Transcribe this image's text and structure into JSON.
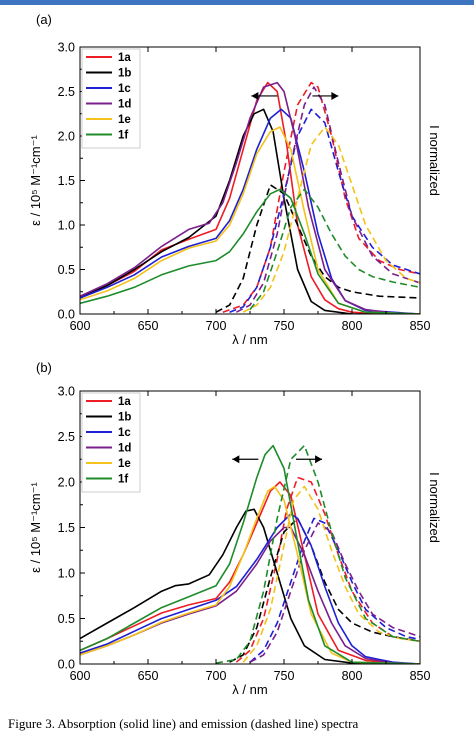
{
  "caption": "Figure 3. Absorption (solid line) and emission (dashed line) spectra",
  "chart_data": [
    {
      "type": "line",
      "panel_label": "(a)",
      "xlabel": "λ / nm",
      "ylabel": "ε / 10⁵ M⁻¹cm⁻¹",
      "y2label": "I normalized",
      "xlim": [
        600,
        850
      ],
      "ylim": [
        0,
        3.0
      ],
      "xticks": [
        "600",
        "650",
        "700",
        "750",
        "800",
        "850"
      ],
      "yticks": [
        "0.0",
        "0.5",
        "1.0",
        "1.5",
        "2.0",
        "2.5",
        "3.0"
      ],
      "legend_position": "top-left",
      "series": [
        {
          "name": "1a",
          "color": "#ee1c25",
          "absorption": {
            "x": [
              600,
              620,
              640,
              660,
              680,
              700,
              710,
              720,
              730,
              738,
              745,
              752,
              760,
              770,
              780,
              790,
              800,
              820,
              850
            ],
            "y": [
              0.2,
              0.32,
              0.48,
              0.72,
              0.84,
              0.95,
              1.3,
              1.85,
              2.4,
              2.6,
              2.5,
              1.9,
              1.0,
              0.42,
              0.16,
              0.06,
              0.02,
              0,
              0
            ]
          },
          "emission": {
            "x": [
              705,
              720,
              730,
              740,
              750,
              760,
              770,
              775,
              785,
              795,
              805,
              820,
              835,
              850
            ],
            "y": [
              0.02,
              0.1,
              0.3,
              0.75,
              1.6,
              2.35,
              2.6,
              2.55,
              2.0,
              1.3,
              0.85,
              0.6,
              0.5,
              0.45
            ]
          }
        },
        {
          "name": "1b",
          "color": "#000000",
          "absorption": {
            "x": [
              600,
              620,
              640,
              660,
              680,
              700,
              710,
              720,
              728,
              735,
              742,
              750,
              760,
              770,
              780,
              800,
              850
            ],
            "y": [
              0.18,
              0.32,
              0.5,
              0.7,
              0.86,
              1.1,
              1.5,
              2.0,
              2.25,
              2.3,
              2.05,
              1.3,
              0.5,
              0.14,
              0.04,
              0,
              0
            ]
          },
          "emission": {
            "x": [
              700,
              710,
              720,
              730,
              740,
              750,
              760,
              770,
              780,
              790,
              800,
              820,
              850
            ],
            "y": [
              0.02,
              0.1,
              0.4,
              1.0,
              1.45,
              1.35,
              1.0,
              0.65,
              0.42,
              0.3,
              0.25,
              0.2,
              0.18
            ]
          }
        },
        {
          "name": "1c",
          "color": "#1f1fd4",
          "absorption": {
            "x": [
              600,
              620,
              640,
              660,
              680,
              700,
              710,
              720,
              730,
              740,
              748,
              755,
              765,
              775,
              785,
              795,
              810,
              850
            ],
            "y": [
              0.18,
              0.3,
              0.44,
              0.64,
              0.76,
              0.85,
              1.05,
              1.4,
              1.85,
              2.2,
              2.3,
              2.2,
              1.6,
              0.9,
              0.4,
              0.15,
              0.04,
              0
            ]
          },
          "emission": {
            "x": [
              710,
              720,
              730,
              740,
              750,
              760,
              770,
              780,
              790,
              800,
              815,
              830,
              850
            ],
            "y": [
              0.02,
              0.08,
              0.3,
              0.75,
              1.35,
              2.0,
              2.3,
              2.15,
              1.6,
              1.1,
              0.75,
              0.55,
              0.45
            ]
          }
        },
        {
          "name": "1d",
          "color": "#7b1f8c",
          "absorption": {
            "x": [
              600,
              620,
              640,
              660,
              680,
              695,
              705,
              715,
              725,
              735,
              745,
              750,
              758,
              768,
              780,
              795,
              810,
              830,
              850
            ],
            "y": [
              0.2,
              0.34,
              0.52,
              0.76,
              0.95,
              1.02,
              1.25,
              1.7,
              2.2,
              2.55,
              2.6,
              2.5,
              2.0,
              1.2,
              0.5,
              0.15,
              0.05,
              0.01,
              0
            ]
          },
          "emission": {
            "x": [
              715,
              725,
              735,
              745,
              755,
              765,
              772,
              780,
              790,
              800,
              815,
              830,
              850
            ],
            "y": [
              0.02,
              0.1,
              0.35,
              0.9,
              1.7,
              2.35,
              2.55,
              2.35,
              1.7,
              1.1,
              0.65,
              0.45,
              0.35
            ]
          }
        },
        {
          "name": "1e",
          "color": "#f3c21b",
          "absorption": {
            "x": [
              600,
              620,
              640,
              660,
              680,
              700,
              710,
              720,
              730,
              740,
              747,
              755,
              765,
              775,
              790,
              810,
              850
            ],
            "y": [
              0.16,
              0.26,
              0.4,
              0.6,
              0.74,
              0.82,
              1.0,
              1.35,
              1.8,
              2.05,
              2.1,
              1.85,
              1.15,
              0.5,
              0.12,
              0.02,
              0
            ]
          },
          "emission": {
            "x": [
              720,
              730,
              740,
              750,
              760,
              770,
              780,
              790,
              800,
              810,
              825,
              840,
              850
            ],
            "y": [
              0.02,
              0.1,
              0.3,
              0.7,
              1.3,
              1.9,
              2.1,
              1.9,
              1.45,
              1.0,
              0.6,
              0.4,
              0.35
            ]
          }
        },
        {
          "name": "1f",
          "color": "#1e8c2a",
          "absorption": {
            "x": [
              600,
              620,
              640,
              660,
              680,
              700,
              710,
              720,
              730,
              740,
              747,
              755,
              765,
              775,
              790,
              810,
              850
            ],
            "y": [
              0.12,
              0.2,
              0.3,
              0.44,
              0.54,
              0.6,
              0.7,
              0.9,
              1.15,
              1.35,
              1.4,
              1.3,
              0.9,
              0.45,
              0.12,
              0.02,
              0
            ]
          },
          "emission": {
            "x": [
              725,
              735,
              745,
              755,
              765,
              775,
              785,
              795,
              805,
              815,
              830,
              850
            ],
            "y": [
              0.05,
              0.25,
              0.7,
              1.2,
              1.4,
              1.2,
              0.9,
              0.65,
              0.5,
              0.42,
              0.36,
              0.3
            ]
          }
        }
      ]
    },
    {
      "type": "line",
      "panel_label": "(b)",
      "xlabel": "λ / nm",
      "ylabel": "ε / 10⁵ M⁻¹cm⁻¹",
      "y2label": "I normalized",
      "xlim": [
        600,
        850
      ],
      "ylim": [
        0,
        3.0
      ],
      "xticks": [
        "600",
        "650",
        "700",
        "750",
        "800",
        "850"
      ],
      "yticks": [
        "0.0",
        "0.5",
        "1.0",
        "1.5",
        "2.0",
        "2.5",
        "3.0"
      ],
      "legend_position": "top-left",
      "series": [
        {
          "name": "1a",
          "color": "#ee1c25",
          "absorption": {
            "x": [
              600,
              620,
              640,
              660,
              680,
              700,
              710,
              720,
              730,
              740,
              747,
              755,
              765,
              775,
              790,
              810,
              830,
              850
            ],
            "y": [
              0.15,
              0.28,
              0.42,
              0.56,
              0.65,
              0.72,
              0.9,
              1.2,
              1.55,
              1.9,
              2.0,
              1.85,
              1.2,
              0.55,
              0.15,
              0.04,
              0.01,
              0
            ]
          },
          "emission": {
            "x": [
              715,
              725,
              735,
              745,
              752,
              760,
              770,
              780,
              790,
              800,
              815,
              830,
              850
            ],
            "y": [
              0.02,
              0.15,
              0.5,
              1.15,
              1.7,
              2.05,
              2.0,
              1.65,
              1.2,
              0.8,
              0.45,
              0.3,
              0.25
            ]
          }
        },
        {
          "name": "1b",
          "color": "#000000",
          "absorption": {
            "x": [
              600,
              620,
              640,
              660,
              670,
              680,
              695,
              705,
              715,
              722,
              728,
              735,
              745,
              755,
              765,
              780,
              800,
              850
            ],
            "y": [
              0.28,
              0.45,
              0.62,
              0.8,
              0.86,
              0.88,
              0.98,
              1.2,
              1.5,
              1.68,
              1.7,
              1.5,
              1.0,
              0.5,
              0.2,
              0.05,
              0.01,
              0
            ]
          },
          "emission": {
            "x": [
              710,
              720,
              730,
              740,
              750,
              760,
              770,
              780,
              790,
              800,
              815,
              830,
              850
            ],
            "y": [
              0.02,
              0.1,
              0.4,
              0.95,
              1.45,
              1.6,
              1.3,
              0.9,
              0.6,
              0.45,
              0.35,
              0.3,
              0.25
            ]
          }
        },
        {
          "name": "1c",
          "color": "#1f1fd4",
          "absorption": {
            "x": [
              600,
              620,
              640,
              660,
              680,
              700,
              715,
              730,
              745,
              755,
              760,
              770,
              780,
              790,
              800,
              810,
              830,
              850
            ],
            "y": [
              0.12,
              0.22,
              0.36,
              0.5,
              0.6,
              0.7,
              0.85,
              1.15,
              1.5,
              1.65,
              1.6,
              1.3,
              0.85,
              0.45,
              0.2,
              0.08,
              0.02,
              0
            ]
          },
          "emission": {
            "x": [
              725,
              735,
              745,
              755,
              765,
              772,
              780,
              790,
              800,
              810,
              825,
              840,
              850
            ],
            "y": [
              0.02,
              0.15,
              0.45,
              0.9,
              1.35,
              1.6,
              1.55,
              1.25,
              0.9,
              0.6,
              0.4,
              0.3,
              0.27
            ]
          }
        },
        {
          "name": "1d",
          "color": "#7b1f8c",
          "absorption": {
            "x": [
              600,
              620,
              640,
              660,
              680,
              700,
              715,
              730,
              740,
              750,
              755,
              765,
              775,
              785,
              795,
              810,
              830,
              850
            ],
            "y": [
              0.1,
              0.2,
              0.32,
              0.45,
              0.55,
              0.64,
              0.8,
              1.1,
              1.35,
              1.5,
              1.5,
              1.2,
              0.8,
              0.45,
              0.2,
              0.06,
              0.01,
              0
            ]
          },
          "emission": {
            "x": [
              725,
              735,
              745,
              755,
              765,
              775,
              785,
              795,
              805,
              815,
              830,
              850
            ],
            "y": [
              0.02,
              0.1,
              0.35,
              0.8,
              1.25,
              1.55,
              1.45,
              1.1,
              0.8,
              0.55,
              0.4,
              0.3
            ]
          }
        },
        {
          "name": "1e",
          "color": "#f3c21b",
          "absorption": {
            "x": [
              600,
              620,
              640,
              660,
              680,
              700,
              710,
              720,
              730,
              738,
              743,
              750,
              760,
              770,
              785,
              800,
              850
            ],
            "y": [
              0.1,
              0.2,
              0.32,
              0.46,
              0.56,
              0.65,
              0.85,
              1.2,
              1.6,
              1.9,
              1.95,
              1.8,
              1.2,
              0.55,
              0.12,
              0.02,
              0
            ]
          },
          "emission": {
            "x": [
              720,
              730,
              740,
              750,
              757,
              765,
              775,
              785,
              795,
              805,
              820,
              835,
              850
            ],
            "y": [
              0.02,
              0.2,
              0.6,
              1.3,
              1.8,
              1.95,
              1.7,
              1.25,
              0.85,
              0.55,
              0.35,
              0.28,
              0.25
            ]
          }
        },
        {
          "name": "1f",
          "color": "#1e8c2a",
          "absorption": {
            "x": [
              600,
              620,
              640,
              660,
              680,
              700,
              710,
              720,
              730,
              736,
              742,
              750,
              758,
              768,
              780,
              800,
              850
            ],
            "y": [
              0.15,
              0.28,
              0.45,
              0.62,
              0.74,
              0.86,
              1.1,
              1.55,
              2.05,
              2.3,
              2.4,
              2.15,
              1.5,
              0.7,
              0.2,
              0.02,
              0
            ]
          },
          "emission": {
            "x": [
              700,
              715,
              725,
              735,
              745,
              755,
              765,
              775,
              785,
              795,
              810,
              830,
              850
            ],
            "y": [
              0.01,
              0.05,
              0.25,
              0.8,
              1.6,
              2.25,
              2.4,
              2.0,
              1.45,
              0.95,
              0.5,
              0.3,
              0.25
            ]
          }
        }
      ]
    }
  ]
}
